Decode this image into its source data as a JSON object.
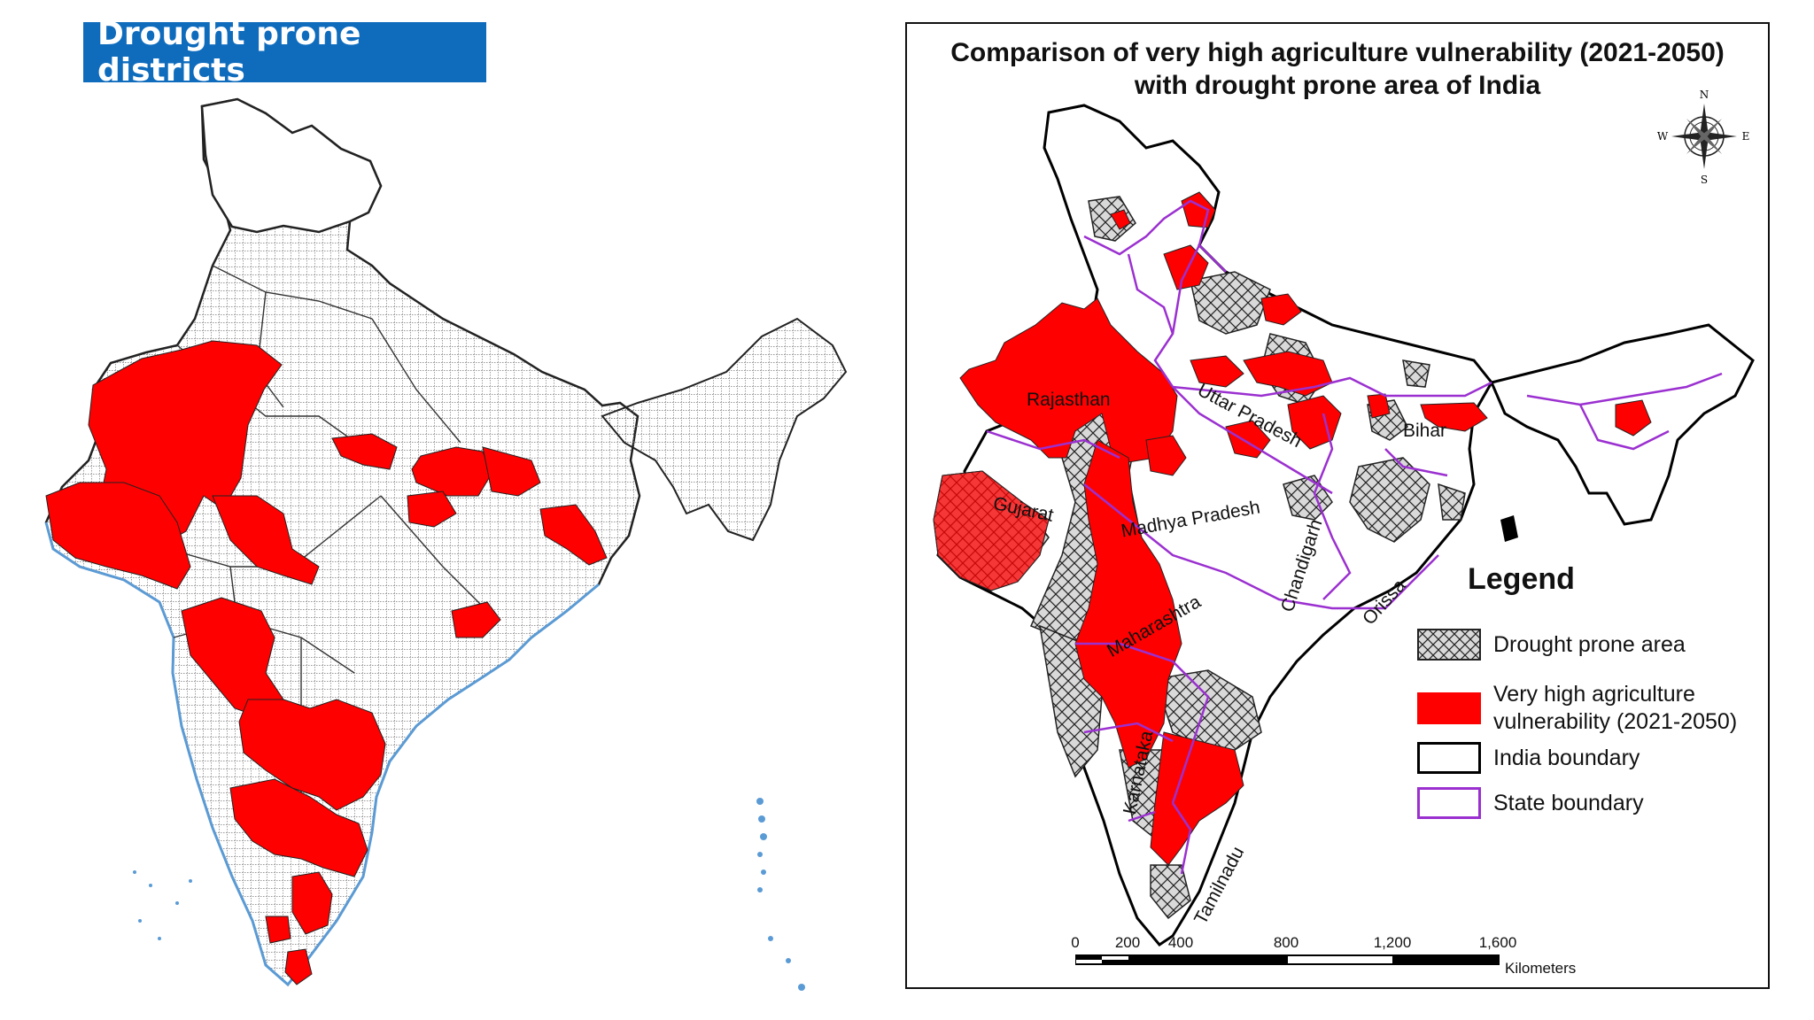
{
  "left_panel": {
    "title": "Drought prone districts",
    "colors": {
      "drought_district": "#ff0000",
      "coastline": "#5b9bd5",
      "district_border": "#333333"
    }
  },
  "right_panel": {
    "title_line1": "Comparison of very high agriculture vulnerability (2021-2050)",
    "title_line2": "with drought prone area of India",
    "compass": {
      "north": "N",
      "south": "S",
      "east": "E",
      "west": "W"
    },
    "legend": {
      "title": "Legend",
      "items": [
        {
          "label": "Drought prone area",
          "swatch": "crosshatch"
        },
        {
          "label_line1": "Very high agriculture",
          "label_line2": "vulnerability (2021-2050)",
          "swatch": "#ff0000"
        },
        {
          "label": "India boundary",
          "swatch": "#000000"
        },
        {
          "label": "State boundary",
          "swatch": "#9b30d0"
        }
      ]
    },
    "state_labels": [
      "Rajasthan",
      "Uttar Pradesh",
      "Bihar",
      "Gujarat",
      "Madhya Pradesh",
      "Chandigarh",
      "Orissa",
      "Maharashtra",
      "Karnataka",
      "Tamilnadu"
    ],
    "scale": {
      "ticks": [
        "0",
        "200",
        "400",
        "800",
        "1,200",
        "1,600"
      ],
      "unit": "Kilometers"
    },
    "colors": {
      "vulnerability": "#ff0000",
      "india_boundary": "#000000",
      "state_boundary": "#9b30d0"
    }
  }
}
